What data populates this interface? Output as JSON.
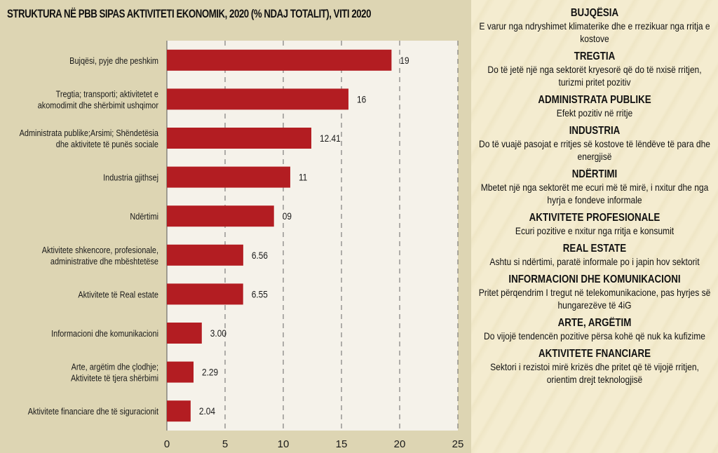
{
  "chart_data": {
    "type": "bar",
    "orientation": "horizontal",
    "title": "STRUKTURA NË PBB SIPAS AKTIVITETI EKONOMIK, 2020 (% NDAJ TOTALIT), VITI 2020",
    "xlabel": "",
    "ylabel": "",
    "xlim": [
      0,
      25
    ],
    "xticks": [
      0,
      5,
      10,
      15,
      20,
      25
    ],
    "grid": "vertical-dashed",
    "bar_color": "#b31d22",
    "categories": [
      [
        "Bujqësi, pyje dhe peshkim"
      ],
      [
        "Tregtia; transporti; aktivitetet e",
        "akomodimit dhe shërbimit ushqimor"
      ],
      [
        "Administrata publike;Arsimi; Shëndetësia",
        "dhe aktivitete të punës sociale"
      ],
      [
        "Industria gjithsej"
      ],
      [
        "Ndërtimi"
      ],
      [
        "Aktivitete shkencore, profesionale,",
        "administrative dhe mbështetëse"
      ],
      [
        "Aktivitete të Real estate"
      ],
      [
        "Informacioni dhe komunikacioni"
      ],
      [
        "Arte, argëtim dhe çlodhje;",
        "Aktivitete të tjera shërbimi"
      ],
      [
        "Aktivitete financiare dhe të siguracionit"
      ]
    ],
    "values": [
      19.3,
      15.6,
      12.41,
      10.6,
      9.2,
      6.56,
      6.55,
      3.0,
      2.29,
      2.04
    ],
    "value_labels": [
      "19",
      "16",
      "12.41",
      "11",
      "09",
      "6.56",
      "6.55",
      "3.00",
      "2.29",
      "2.04"
    ]
  },
  "notes": [
    {
      "head": "BUJQËSIA",
      "body": "E varur nga ndryshimet klimaterike dhe e rrezikuar nga rritja e kostove"
    },
    {
      "head": "TREGTIA",
      "body": "Do të jetë një nga sektorët kryesorë që do të nxisë rritjen, turizmi pritet pozitiv"
    },
    {
      "head": "ADMINISTRATA PUBLIKE",
      "body": "Efekt pozitiv në rritje"
    },
    {
      "head": "INDUSTRIA",
      "body": "Do të vuajë pasojat e rritjes së kostove të lëndëve të para dhe energjisë"
    },
    {
      "head": "NDËRTIMI",
      "body": "Mbetet një nga sektorët me ecuri më të mirë, i nxitur dhe nga hyrja e fondeve informale"
    },
    {
      "head": "AKTIVITETE PROFESIONALE",
      "body": "Ecuri pozitive e nxitur nga rritja e konsumit"
    },
    {
      "head": "REAL ESTATE",
      "body": "Ashtu si ndërtimi, paratë informale po i japin hov sektorit"
    },
    {
      "head": "INFORMACIONI DHE KOMUNIKACIONI",
      "body": "Pritet përqendrim I tregut në telekomunikacione, pas hyrjes së hungarezëve të 4iG"
    },
    {
      "head": "ARTE, ARGËTIM",
      "body": "Do vijojë tendencën pozitive përsa kohë që nuk ka kufizime"
    },
    {
      "head": "AKTIVITETE FNANCIARE",
      "body": "Sektori i rezistoi mirë krizës dhe pritet që të vijojë rritjen, orientim drejt teknologjisë"
    }
  ]
}
